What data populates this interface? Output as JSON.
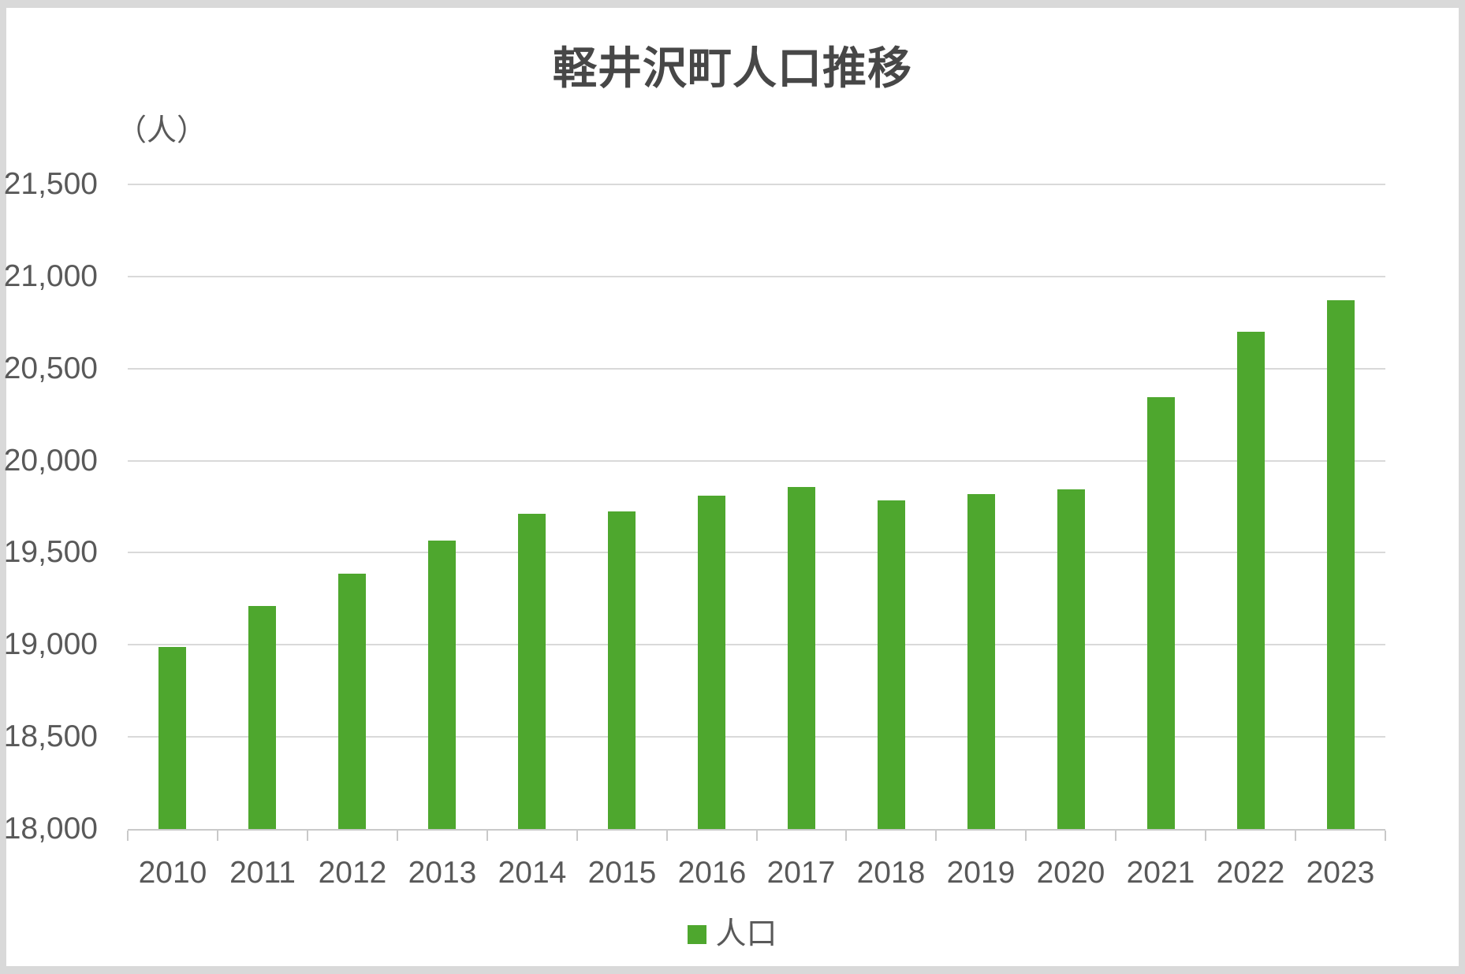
{
  "chart_data": {
    "type": "bar",
    "title": "軽井沢町人口推移",
    "unit_label": "（人）",
    "xlabel": "",
    "ylabel": "人",
    "categories": [
      "2010",
      "2011",
      "2012",
      "2013",
      "2014",
      "2015",
      "2016",
      "2017",
      "2018",
      "2019",
      "2020",
      "2021",
      "2022",
      "2023"
    ],
    "series": [
      {
        "name": "人口",
        "values": [
          18990,
          19210,
          19385,
          19565,
          19710,
          19725,
          19810,
          19855,
          19785,
          19820,
          19845,
          20345,
          20700,
          20870
        ]
      }
    ],
    "ylim": [
      18000,
      21500
    ],
    "yticks": [
      {
        "value": 21500,
        "label": "21,500"
      },
      {
        "value": 21000,
        "label": "21,000"
      },
      {
        "value": 20500,
        "label": "20,500"
      },
      {
        "value": 20000,
        "label": "20,000"
      },
      {
        "value": 19500,
        "label": "19,500"
      },
      {
        "value": 19000,
        "label": "19,000"
      },
      {
        "value": 18500,
        "label": "18,500"
      },
      {
        "value": 18000,
        "label": "18,000"
      }
    ],
    "grid": true,
    "legend_position": "bottom",
    "colors": {
      "bar": "#4ea72e",
      "gridline": "#d9d9d9",
      "axis_line": "#c9c9c9",
      "tick_text": "#595959",
      "title_text": "#474747",
      "frame_border": "#d9d9d9",
      "background": "#ffffff"
    }
  },
  "legend": {
    "label": "人口",
    "swatch_color": "#4ea72e"
  }
}
